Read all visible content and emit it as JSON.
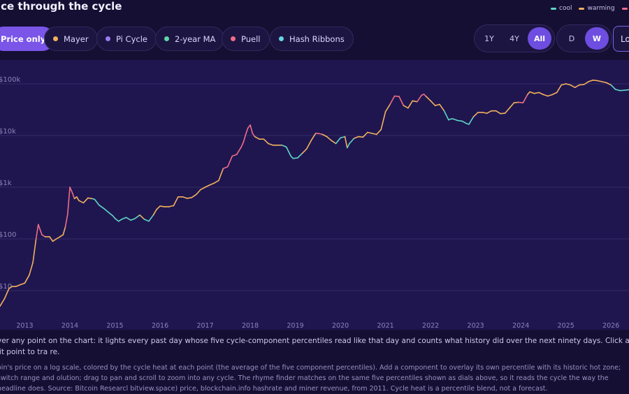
{
  "header": {
    "title": "ice through the cycle",
    "legend": [
      {
        "label": "cool",
        "color": "#5fd6c4"
      },
      {
        "label": "warming",
        "color": "#f2b15c"
      },
      {
        "label": "",
        "color": "#ef6d86"
      }
    ]
  },
  "components": [
    {
      "label": "Price only",
      "active": true,
      "dot": ""
    },
    {
      "label": "Mayer",
      "dot": "#f2b15c"
    },
    {
      "label": "Pi Cycle",
      "dot": "#9b7cf2"
    },
    {
      "label": "2-year MA",
      "dot": "#5fd6a7"
    },
    {
      "label": "Puell",
      "dot": "#ef6d86"
    },
    {
      "label": "Hash Ribbons",
      "dot": "#6ad2e0"
    }
  ],
  "range": {
    "options": [
      "1Y",
      "4Y",
      "All"
    ],
    "selected": "All"
  },
  "interval": {
    "options": [
      "D",
      "W"
    ],
    "selected": "W"
  },
  "log_button": "Lo",
  "chart_data": {
    "type": "line",
    "y_scale": "log",
    "y_ticks": [
      "$10",
      "$100",
      "$1k",
      "$10k",
      "$100k"
    ],
    "x_ticks": [
      "2013",
      "2014",
      "2015",
      "2016",
      "2017",
      "2018",
      "2019",
      "2020",
      "2021",
      "2022",
      "2023",
      "2024",
      "2025",
      "2026"
    ],
    "xlim": [
      2012.45,
      2026.4
    ],
    "series": [
      {
        "x": [
          2012.45,
          2012.55,
          2012.65,
          2012.72,
          2012.8,
          2012.9,
          2013.0,
          2013.1,
          2013.18,
          2013.25,
          2013.3,
          2013.38,
          2013.45,
          2013.55,
          2013.62,
          2013.7,
          2013.78,
          2013.85,
          2013.9,
          2013.95,
          2014.0,
          2014.05,
          2014.1,
          2014.15,
          2014.2,
          2014.3,
          2014.4,
          2014.5,
          2014.55,
          2014.65,
          2014.75,
          2014.85,
          2014.95,
          2015.0,
          2015.08,
          2015.15,
          2015.25,
          2015.35,
          2015.45,
          2015.55,
          2015.65,
          2015.75,
          2015.85,
          2015.92,
          2016.0,
          2016.1,
          2016.2,
          2016.3,
          2016.4,
          2016.5,
          2016.6,
          2016.7,
          2016.8,
          2016.9,
          2017.0,
          2017.1,
          2017.2,
          2017.3,
          2017.4,
          2017.5,
          2017.6,
          2017.7,
          2017.8,
          2017.85,
          2017.9,
          2017.95,
          2018.0,
          2018.05,
          2018.1,
          2018.2,
          2018.3,
          2018.4,
          2018.5,
          2018.6,
          2018.7,
          2018.8,
          2018.9,
          2018.95,
          2019.05,
          2019.15,
          2019.25,
          2019.35,
          2019.45,
          2019.5,
          2019.6,
          2019.7,
          2019.8,
          2019.9,
          2020.0,
          2020.1,
          2020.15,
          2020.2,
          2020.3,
          2020.4,
          2020.5,
          2020.6,
          2020.7,
          2020.8,
          2020.9,
          2021.0,
          2021.1,
          2021.2,
          2021.3,
          2021.4,
          2021.5,
          2021.55,
          2021.6,
          2021.7,
          2021.8,
          2021.85,
          2021.9,
          2022.0,
          2022.1,
          2022.2,
          2022.3,
          2022.4,
          2022.45,
          2022.5,
          2022.6,
          2022.7,
          2022.8,
          2022.85,
          2022.95,
          2023.05,
          2023.15,
          2023.25,
          2023.35,
          2023.45,
          2023.55,
          2023.65,
          2023.75,
          2023.85,
          2023.95,
          2024.05,
          2024.15,
          2024.2,
          2024.3,
          2024.4,
          2024.5,
          2024.6,
          2024.7,
          2024.8,
          2024.9,
          2025.0,
          2025.1,
          2025.2,
          2025.3,
          2025.4,
          2025.5,
          2025.6,
          2025.7,
          2025.8,
          2025.9,
          2026.0,
          2026.1,
          2026.2,
          2026.3,
          2026.4
        ],
        "y": [
          5,
          7,
          11,
          12,
          12,
          13,
          14,
          20,
          35,
          100,
          190,
          120,
          110,
          110,
          90,
          100,
          110,
          120,
          170,
          300,
          1000,
          800,
          600,
          650,
          550,
          500,
          620,
          600,
          580,
          450,
          390,
          330,
          280,
          250,
          220,
          240,
          260,
          230,
          250,
          290,
          240,
          220,
          290,
          370,
          430,
          420,
          420,
          440,
          650,
          650,
          610,
          630,
          720,
          900,
          1000,
          1100,
          1200,
          1350,
          2300,
          2500,
          4000,
          4300,
          6000,
          7500,
          10500,
          14000,
          16000,
          11000,
          9500,
          8500,
          8500,
          7000,
          6500,
          6500,
          6500,
          6000,
          4000,
          3600,
          3700,
          4500,
          5500,
          8000,
          11000,
          11000,
          10500,
          9500,
          8000,
          7000,
          9000,
          9500,
          5800,
          7000,
          8800,
          9500,
          9300,
          11500,
          11000,
          10500,
          13000,
          29000,
          40000,
          58000,
          57000,
          38000,
          34000,
          40000,
          47000,
          45000,
          60000,
          63000,
          57000,
          47000,
          38000,
          40000,
          30000,
          20000,
          21000,
          21000,
          19500,
          19000,
          17000,
          16500,
          23000,
          28000,
          28000,
          27000,
          30000,
          30000,
          26500,
          27000,
          34000,
          43000,
          44000,
          43000,
          62000,
          70000,
          65000,
          68000,
          62000,
          58000,
          62000,
          68000,
          95000,
          100000,
          95000,
          85000,
          95000,
          97000,
          110000,
          118000,
          115000,
          110000,
          105000,
          95000,
          78000,
          74000,
          75000,
          77000
        ],
        "heat": [
          "warming",
          "warming",
          "warming",
          "warming",
          "warming",
          "warming",
          "warming",
          "warming",
          "warming",
          "hot",
          "hot",
          "hot",
          "warming",
          "warming",
          "warming",
          "warming",
          "warming",
          "warming",
          "hot",
          "hot",
          "hot",
          "hot",
          "warming",
          "warming",
          "warming",
          "warming",
          "warming",
          "cool",
          "cool",
          "cool",
          "cool",
          "cool",
          "cool",
          "cool",
          "cool",
          "cool",
          "cool",
          "cool",
          "cool",
          "warming",
          "cool",
          "cool",
          "warming",
          "warming",
          "warming",
          "warming",
          "warming",
          "warming",
          "warming",
          "warming",
          "warming",
          "warming",
          "warming",
          "warming",
          "warming",
          "warming",
          "warming",
          "warming",
          "hot",
          "hot",
          "hot",
          "hot",
          "hot",
          "hot",
          "hot",
          "hot",
          "hot",
          "hot",
          "warming",
          "warming",
          "warming",
          "warming",
          "warming",
          "warming",
          "cool",
          "cool",
          "cool",
          "cool",
          "cool",
          "warming",
          "warming",
          "warming",
          "hot",
          "hot",
          "warming",
          "warming",
          "warming",
          "cool",
          "cool",
          "warming",
          "cool",
          "cool",
          "warming",
          "warming",
          "warming",
          "warming",
          "warming",
          "warming",
          "warming",
          "warming",
          "hot",
          "hot",
          "hot",
          "warming",
          "warming",
          "warming",
          "warming",
          "hot",
          "hot",
          "hot",
          "warming",
          "warming",
          "warming",
          "warming",
          "cool",
          "cool",
          "cool",
          "cool",
          "cool",
          "cool",
          "cool",
          "cool",
          "warming",
          "warming",
          "warming",
          "warming",
          "warming",
          "warming",
          "warming",
          "warming",
          "warming",
          "warming",
          "hot",
          "hot",
          "warming",
          "warming",
          "warming",
          "warming",
          "warming",
          "warming",
          "warming",
          "warming",
          "warming",
          "warming",
          "warming",
          "warming",
          "warming",
          "warming",
          "warming",
          "warming",
          "warming",
          "warming",
          "warming",
          "cool",
          "cool",
          "cool",
          "cool"
        ]
      }
    ]
  },
  "footer": {
    "hint": "ver any point on the chart: it lights every past day whose five cycle-component percentiles read like that day and counts what history did over the next ninety days. Click a lit point to tra re.",
    "description": "oin's price on a log scale, colored by the cycle heat at each point (the average of the five component percentiles). Add a component to overlay its own percentile with its historic hot zone; switch range and olution; drag to pan and scroll to zoom into any cycle. The rhyme finder matches on the same five percentiles shown as dials above, so it reads the cycle the way the headline does. Source: Bitcoin Researcl bitview.space) price, blockchain.info hashrate and miner revenue, from 2011. Cycle heat is a percentile blend, not a forecast."
  },
  "colors": {
    "cool": "#5fd6c4",
    "warming": "#f2b15c",
    "hot": "#ef6d86",
    "accent": "#7a55e8"
  }
}
